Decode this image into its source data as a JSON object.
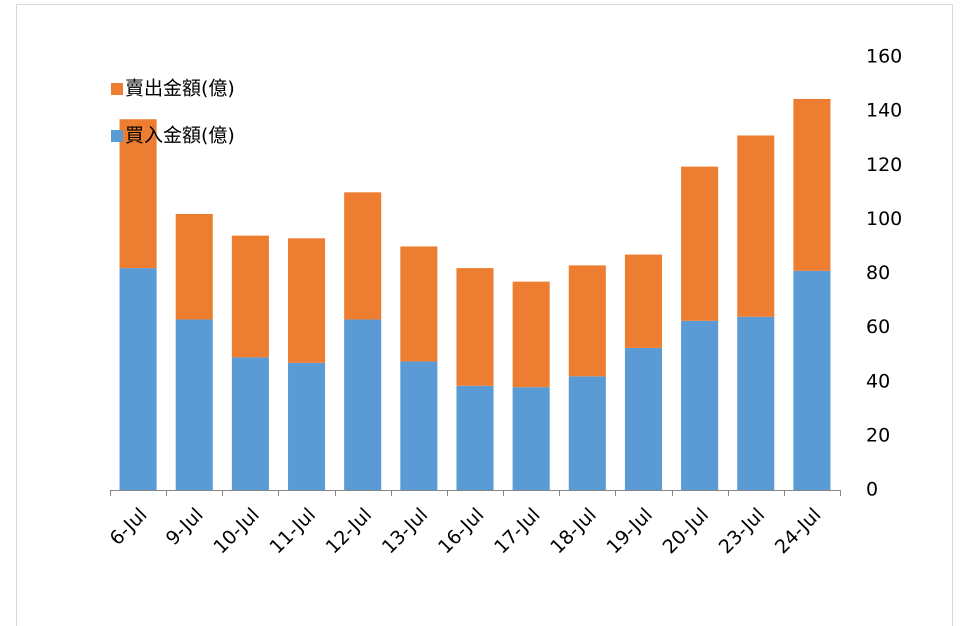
{
  "chart_data": {
    "type": "stacked-bar",
    "categories": [
      "6-Jul",
      "9-Jul",
      "10-Jul",
      "11-Jul",
      "12-Jul",
      "13-Jul",
      "16-Jul",
      "17-Jul",
      "18-Jul",
      "19-Jul",
      "20-Jul",
      "23-Jul",
      "24-Jul"
    ],
    "series": [
      {
        "name": "買入金額(億)",
        "color": "#5b9bd5",
        "values": [
          82,
          63,
          49,
          47,
          63,
          47.5,
          38.5,
          38,
          42,
          52.5,
          62.5,
          64,
          81
        ]
      },
      {
        "name": "賣出金額(億)",
        "color": "#ed7d31",
        "values": [
          55,
          39,
          45,
          46,
          47,
          42.5,
          43.5,
          39,
          41,
          34.5,
          57,
          67,
          63.5
        ]
      }
    ],
    "ylim": [
      0,
      160
    ],
    "yticks": [
      0,
      20,
      40,
      60,
      80,
      100,
      120,
      140,
      160
    ],
    "y_axis_side": "right",
    "grid": false
  }
}
